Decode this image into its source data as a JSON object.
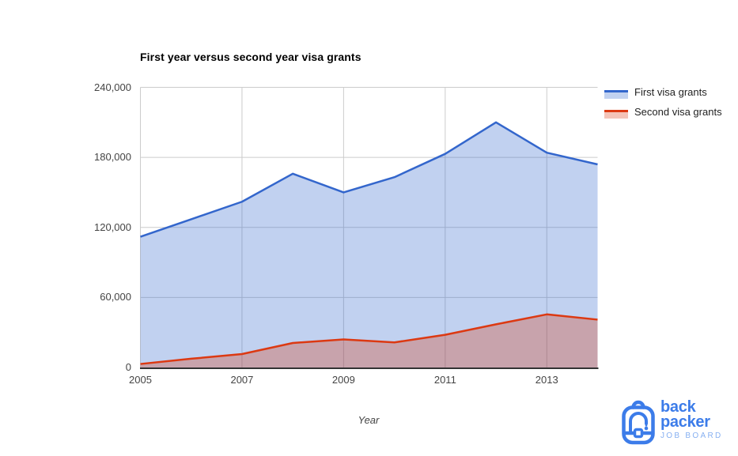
{
  "chart_data": {
    "type": "area",
    "title": "First year versus second year visa grants",
    "xlabel": "Year",
    "ylabel": "",
    "x": [
      2005,
      2006,
      2007,
      2008,
      2009,
      2010,
      2011,
      2012,
      2013,
      2014
    ],
    "ylim": [
      0,
      240000
    ],
    "grid": true,
    "legend_position": "right",
    "x_ticks": {
      "labels": [
        "2005",
        "2007",
        "2009",
        "2011",
        "2013"
      ],
      "indices": [
        0,
        2,
        4,
        6,
        8
      ]
    },
    "y_ticks": {
      "labels": [
        "240,000",
        "180,000",
        "120,000",
        "60,000",
        "0"
      ],
      "values": [
        240000,
        180000,
        120000,
        60000,
        0
      ]
    },
    "series": [
      {
        "name": "First visa grants",
        "color": "#3366cc",
        "fill": "rgba(51,102,204,0.30)",
        "values": [
          112000,
          127000,
          142000,
          166000,
          150000,
          163000,
          183000,
          210000,
          184000,
          174000
        ]
      },
      {
        "name": "Second visa grants",
        "color": "#dc3912",
        "fill": "rgba(220,57,18,0.30)",
        "values": [
          3000,
          7500,
          11500,
          21000,
          24000,
          21500,
          28000,
          37000,
          45500,
          41000
        ]
      }
    ],
    "gridline_color": "#cccccc",
    "axis_line_color": "#333333",
    "tick_label_color": "#444444"
  },
  "logo": {
    "line1": "back",
    "line2": "packer",
    "line3": "JOB BOARD",
    "brand_color": "#3c7ce9",
    "light_color": "#87b0f1"
  }
}
